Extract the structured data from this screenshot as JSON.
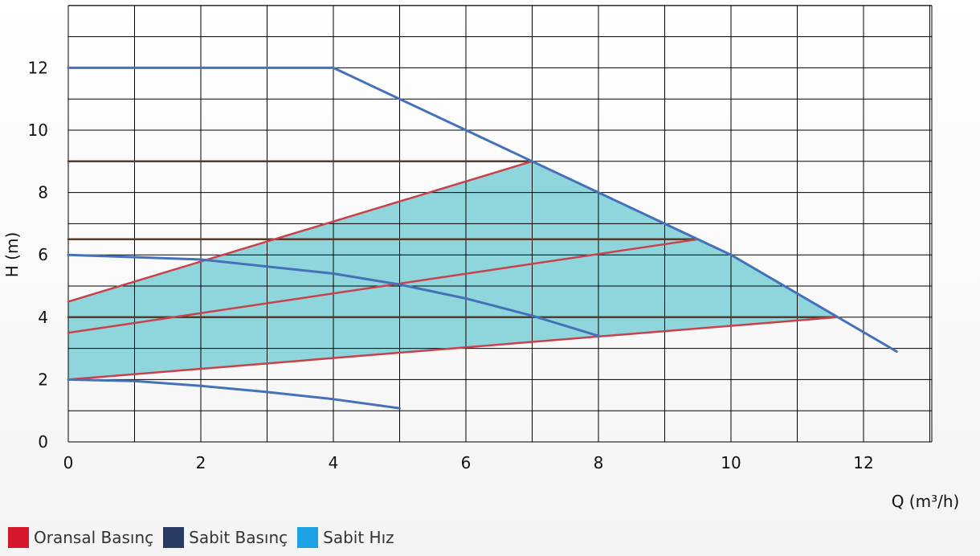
{
  "chart_data": {
    "type": "line",
    "xlabel": "Q (m³/h)",
    "ylabel": "H (m)",
    "xlim": [
      0,
      13
    ],
    "ylim": [
      0,
      14
    ],
    "x_ticks": [
      "0",
      "2",
      "4",
      "6",
      "8",
      "10",
      "12"
    ],
    "y_ticks": [
      "0",
      "2",
      "4",
      "6",
      "8",
      "10",
      "12"
    ],
    "grid": true,
    "legend_position": "bottom-left",
    "region": {
      "fill": "#8ed6dc",
      "points": [
        [
          0,
          2.0
        ],
        [
          0,
          4.5
        ],
        [
          7,
          9.0
        ],
        [
          10,
          6.0
        ],
        [
          11.6,
          4.0
        ],
        [
          8,
          3.4
        ]
      ]
    },
    "series": [
      {
        "legend": "blue",
        "points": [
          [
            0,
            12
          ],
          [
            4,
            12
          ],
          [
            7,
            9
          ],
          [
            10,
            6
          ],
          [
            12.5,
            2.9
          ]
        ]
      },
      {
        "legend": "blue",
        "points": [
          [
            0,
            6.0
          ],
          [
            2,
            5.85
          ],
          [
            4,
            5.4
          ],
          [
            5,
            5.05
          ],
          [
            6,
            4.6
          ],
          [
            7,
            4.05
          ],
          [
            8,
            3.4
          ]
        ]
      },
      {
        "legend": "blue",
        "points": [
          [
            0,
            2.0
          ],
          [
            1,
            1.95
          ],
          [
            2,
            1.8
          ],
          [
            3,
            1.6
          ],
          [
            4,
            1.37
          ],
          [
            5,
            1.08
          ]
        ]
      },
      {
        "legend": "red",
        "points": [
          [
            0,
            4.5
          ],
          [
            7,
            9
          ]
        ]
      },
      {
        "legend": "red",
        "points": [
          [
            0,
            3.5
          ],
          [
            9.5,
            6.5
          ]
        ]
      },
      {
        "legend": "red",
        "points": [
          [
            0,
            2.0
          ],
          [
            11.6,
            4.0
          ]
        ]
      },
      {
        "legend": "dark",
        "points": [
          [
            0,
            9
          ],
          [
            7,
            9
          ]
        ]
      },
      {
        "legend": "dark",
        "points": [
          [
            0,
            6.5
          ],
          [
            9.5,
            6.5
          ]
        ]
      },
      {
        "legend": "dark",
        "points": [
          [
            0,
            4
          ],
          [
            11.6,
            4
          ]
        ]
      }
    ]
  },
  "legend": [
    {
      "label": "Oransal Basınç",
      "color": "#d5182b"
    },
    {
      "label": "Sabit Basınç",
      "color": "#283c63"
    },
    {
      "label": "Sabit Hız",
      "color": "#1ca2e2"
    }
  ],
  "colors": {
    "blue_line": "#4472b8",
    "red_line": "#c8414b",
    "dark_line": "#5a3a2a",
    "grid": "#000000"
  }
}
